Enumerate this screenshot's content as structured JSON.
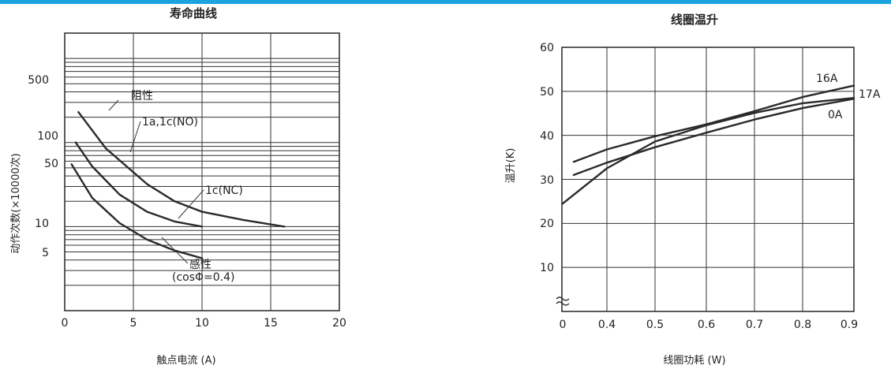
{
  "page": {
    "accent_color": "#1aa3df"
  },
  "chart_data": [
    {
      "type": "line",
      "title": "寿命曲线",
      "xlabel": "触点电流 (A)",
      "ylabel": "动作次数(×10000次)",
      "xlim": [
        0,
        20
      ],
      "ylim": [
        1,
        2000
      ],
      "yscale": "log",
      "grid": true,
      "x_ticks": [
        "0",
        "5",
        "10",
        "15",
        "20"
      ],
      "y_ticks": [
        "500",
        "100",
        "50",
        "10",
        "5"
      ],
      "series": [
        {
          "name": "阻性",
          "x": [
            1,
            3,
            6,
            8,
            10,
            13,
            16
          ],
          "y": [
            230,
            85,
            32,
            20,
            15,
            12,
            10
          ]
        },
        {
          "name": "1c(NC)",
          "x": [
            0.8,
            2,
            4,
            6,
            8,
            10
          ],
          "y": [
            100,
            52,
            24,
            15,
            11.5,
            10
          ]
        },
        {
          "name": "感性",
          "x": [
            0.5,
            2,
            4,
            6,
            8,
            10
          ],
          "y": [
            55,
            22,
            11,
            7,
            5.2,
            4.2
          ]
        }
      ],
      "annotations": [
        "阻性",
        "1a,1c(NO)",
        "1c(NC)",
        "感性",
        "(cosΦ=0.4)"
      ]
    },
    {
      "type": "line",
      "title": "线圈温升",
      "xlabel": "线圈功耗 (W)",
      "ylabel": "温升(K)",
      "xlim": [
        0.3,
        0.9
      ],
      "ylim": [
        0,
        60
      ],
      "grid": true,
      "axis_break": "≈",
      "x_ticks": [
        "0",
        "0.4",
        "0.5",
        "0.6",
        "0.7",
        "0.8",
        "0.9"
      ],
      "y_ticks": [
        "60",
        "50",
        "40",
        "30",
        "20",
        "10"
      ],
      "series": [
        {
          "name": "16A",
          "x": [
            0.325,
            0.4,
            0.5,
            0.6,
            0.7,
            0.8,
            0.9
          ],
          "y": [
            34,
            36.8,
            39.8,
            42.5,
            45.5,
            48.7,
            51.3
          ]
        },
        {
          "name": "17A",
          "x": [
            0.325,
            0.4,
            0.5,
            0.6,
            0.7,
            0.8,
            0.9
          ],
          "y": [
            31,
            33.8,
            37.3,
            40.6,
            43.6,
            46.2,
            48.3
          ]
        },
        {
          "name": "0A",
          "x": [
            0.3,
            0.4,
            0.5,
            0.6,
            0.7,
            0.8,
            0.9
          ],
          "y": [
            24.5,
            32.5,
            38.6,
            42.3,
            45.1,
            47.3,
            48.5
          ]
        }
      ]
    }
  ]
}
